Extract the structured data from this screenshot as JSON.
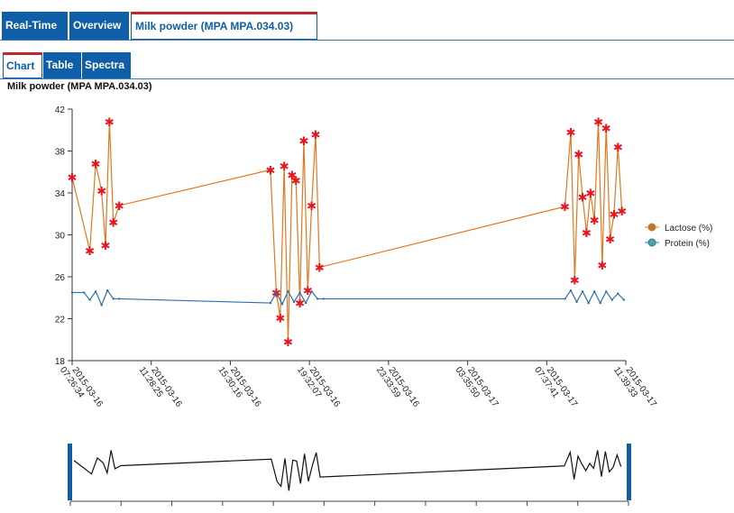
{
  "tabs": [
    {
      "label": "Real-Time"
    },
    {
      "label": "Overview"
    },
    {
      "label": "Milk powder (MPA MPA.034.03)"
    }
  ],
  "subtabs": [
    {
      "label": "Chart"
    },
    {
      "label": "Table"
    },
    {
      "label": "Spectra"
    }
  ],
  "chart_title": "Milk powder (MPA MPA.034.03)",
  "colors": {
    "accent": "#0f5fa8",
    "active_marker": "#c0272d",
    "lactose": "#e07820",
    "protein": "#2d6fb0",
    "point_marker": "#e8141e"
  },
  "chart_data": {
    "type": "line",
    "title": "Milk powder (MPA MPA.034.03)",
    "xlabel": "",
    "ylabel": "",
    "ylim": [
      18,
      42
    ],
    "y_ticks": [
      18,
      22,
      26,
      30,
      34,
      38,
      42
    ],
    "x_ticks": [
      "2015-03-16 07:26:34",
      "2015-03-16 11:28:25",
      "2015-03-16 15:30:16",
      "2015-03-16 19:32:07",
      "2015-03-16 23:33:59",
      "2015-03-17 03:35:50",
      "2015-03-17 07:37:41",
      "2015-03-17 11:39:33"
    ],
    "x_hours_range": [
      0,
      28.2
    ],
    "legend_position": "right",
    "series": [
      {
        "name": "Lactose (%)",
        "color": "#e07820",
        "x": [
          0,
          0.9,
          1.2,
          1.5,
          1.7,
          1.9,
          2.1,
          2.4,
          10.1,
          10.4,
          10.6,
          10.8,
          11.0,
          11.2,
          11.4,
          11.6,
          11.8,
          12.0,
          12.2,
          12.4,
          12.6,
          25.1,
          25.4,
          25.6,
          25.8,
          26.0,
          26.2,
          26.4,
          26.6,
          26.8,
          27.0,
          27.2,
          27.4,
          27.6,
          27.8,
          28.0
        ],
        "values": [
          35.5,
          28.5,
          36.8,
          34.2,
          29.0,
          40.8,
          31.2,
          32.8,
          36.2,
          24.5,
          22.1,
          36.6,
          19.8,
          35.7,
          35.2,
          23.5,
          39.0,
          24.7,
          32.8,
          39.6,
          26.9,
          32.7,
          39.8,
          25.7,
          37.7,
          33.6,
          30.2,
          34.0,
          31.4,
          40.8,
          27.1,
          40.2,
          29.6,
          32.0,
          38.4,
          32.3
        ]
      },
      {
        "name": "Protein (%)",
        "color": "#2d6fb0",
        "x": [
          0,
          0.6,
          0.9,
          1.2,
          1.5,
          1.8,
          2.1,
          2.4,
          10.1,
          10.4,
          10.7,
          11.0,
          11.3,
          11.6,
          11.9,
          12.2,
          12.5,
          12.8,
          25.1,
          25.4,
          25.7,
          26.0,
          26.3,
          26.6,
          26.9,
          27.2,
          27.5,
          27.8,
          28.1
        ],
        "values": [
          24.5,
          24.5,
          23.8,
          24.6,
          23.3,
          24.7,
          23.9,
          23.9,
          23.5,
          24.5,
          23.4,
          24.6,
          23.6,
          24.5,
          23.5,
          24.6,
          23.9,
          23.9,
          23.9,
          24.7,
          23.6,
          24.6,
          23.5,
          24.6,
          23.5,
          24.6,
          23.8,
          24.4,
          23.8
        ]
      }
    ]
  }
}
